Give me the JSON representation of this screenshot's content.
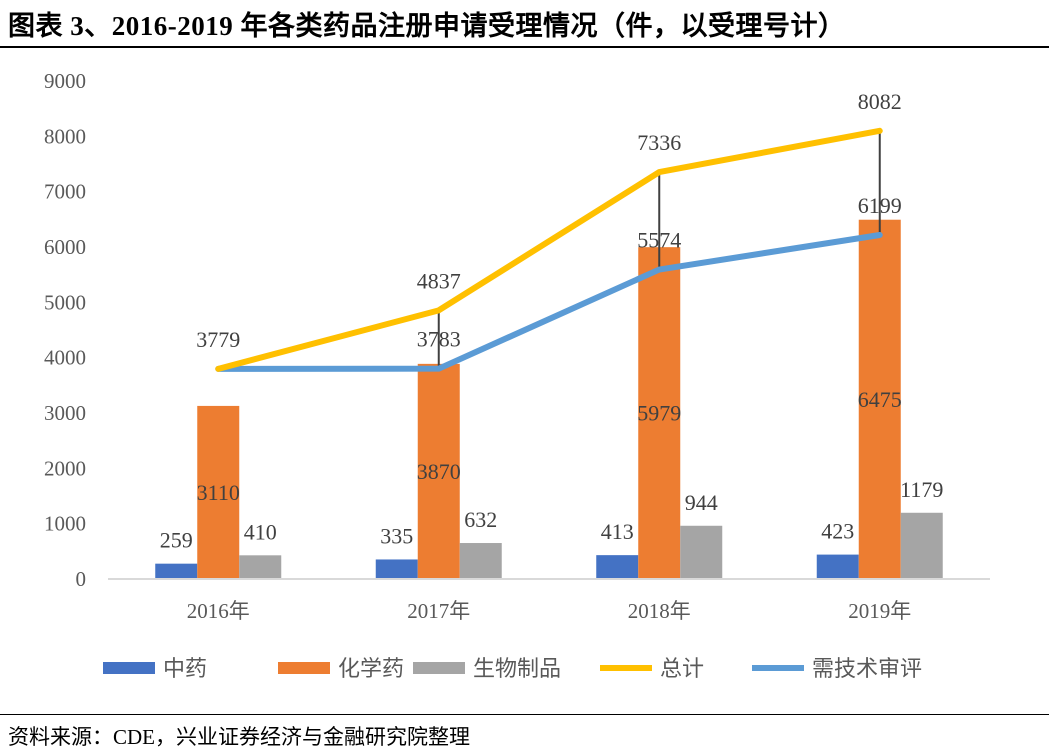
{
  "title": "图表 3、2016-2019 年各类药品注册申请受理情况（件，以受理号计）",
  "source": "资料来源：CDE，兴业证券经济与金融研究院整理",
  "chart_data": {
    "type": "bar",
    "categories": [
      "2016年",
      "2017年",
      "2018年",
      "2019年"
    ],
    "ylim": [
      0,
      9000
    ],
    "yticks": [
      0,
      1000,
      2000,
      3000,
      4000,
      5000,
      6000,
      7000,
      8000,
      9000
    ],
    "grid": false,
    "legend_position": "bottom",
    "bar_series": [
      {
        "name": "中药",
        "values": [
          259,
          335,
          413,
          423
        ],
        "color": "#4472C4"
      },
      {
        "name": "化学药",
        "values": [
          3110,
          3870,
          5979,
          6475
        ],
        "color": "#ED7D31"
      },
      {
        "name": "生物制品",
        "values": [
          410,
          632,
          944,
          1179
        ],
        "color": "#A5A5A5"
      }
    ],
    "line_series": [
      {
        "name": "总计",
        "values": [
          3779,
          4837,
          7336,
          8082
        ],
        "color": "#FFC000"
      },
      {
        "name": "需技术审评",
        "values": [
          3779,
          3783,
          5574,
          6199
        ],
        "color": "#5B9BD5",
        "labels_shown": [
          false,
          true,
          true,
          true
        ]
      }
    ],
    "high_low_lines": true
  }
}
